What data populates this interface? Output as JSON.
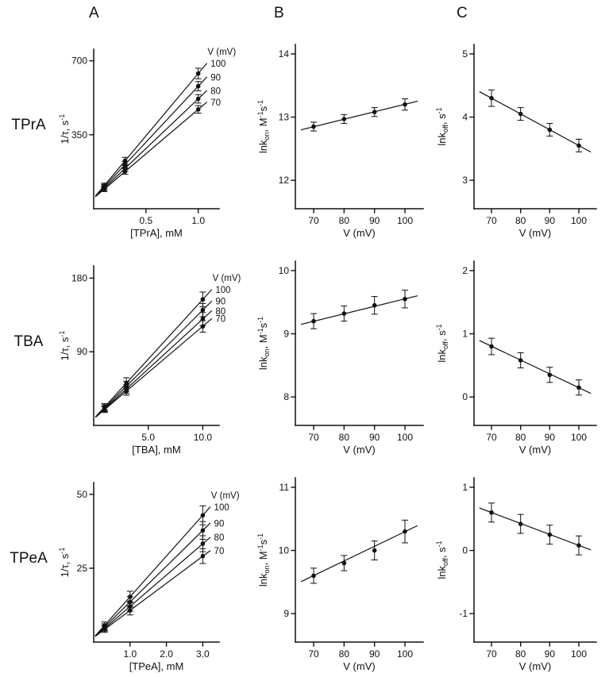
{
  "page": {
    "column_headers": [
      "A",
      "B",
      "C"
    ],
    "row_labels": [
      "TPrA",
      "TBA",
      "TPeA"
    ],
    "colors": {
      "ink": "#111111",
      "bg": "#ffffff"
    }
  },
  "chart_data": [
    {
      "id": "tpra-a",
      "type": "scatter",
      "xlabel": "[TPrA], mM",
      "ylabel_parts": [
        {
          "t": "1/τ, s"
        },
        {
          "t": "-1",
          "sup": true
        }
      ],
      "xlim": [
        0,
        1.2
      ],
      "ylim": [
        0,
        755
      ],
      "xticks": [
        0.5,
        1.0
      ],
      "xtick_labels": [
        "0.5",
        "1.0"
      ],
      "yticks": [
        350,
        700
      ],
      "ytick_labels": [
        "350",
        "700"
      ],
      "series_header": "V (mV)",
      "series": [
        {
          "label": "100",
          "x": [
            0.1,
            0.3,
            1.0
          ],
          "y": [
            109,
            227,
            640
          ],
          "yerr": [
            12,
            16,
            25
          ],
          "line": {
            "x": [
              0.02,
              1.08
            ],
            "y": [
              61.8,
              687.2
            ]
          }
        },
        {
          "label": "90",
          "x": [
            0.1,
            0.3,
            1.0
          ],
          "y": [
            103,
            209,
            580
          ],
          "yerr": [
            12,
            15,
            22
          ],
          "line": {
            "x": [
              0.02,
              1.08
            ],
            "y": [
              60.6,
              622.4
            ]
          }
        },
        {
          "label": "80",
          "x": [
            0.1,
            0.3,
            1.0
          ],
          "y": [
            97,
            191,
            520
          ],
          "yerr": [
            11,
            14,
            20
          ],
          "line": {
            "x": [
              0.02,
              1.08
            ],
            "y": [
              59.4,
              557.6
            ]
          }
        },
        {
          "label": "70",
          "x": [
            0.1,
            0.3,
            1.0
          ],
          "y": [
            92,
            176,
            470
          ],
          "yerr": [
            11,
            13,
            18
          ],
          "line": {
            "x": [
              0.02,
              1.08
            ],
            "y": [
              58.4,
              503.6
            ]
          }
        }
      ]
    },
    {
      "id": "tpra-kon",
      "type": "scatter",
      "xlabel": "V (mV)",
      "ylabel_parts": [
        {
          "t": "lnk"
        },
        {
          "t": "on",
          "sub": true
        },
        {
          "t": ", M"
        },
        {
          "t": "-1",
          "sup": true
        },
        {
          "t": "s"
        },
        {
          "t": "-1",
          "sup": true
        }
      ],
      "xlim": [
        64,
        106
      ],
      "ylim": [
        11.55,
        14.15
      ],
      "xticks": [
        70,
        80,
        90,
        100
      ],
      "xtick_labels": [
        "70",
        "80",
        "90",
        "100"
      ],
      "yticks": [
        12,
        13,
        14
      ],
      "ytick_labels": [
        "12",
        "13",
        "14"
      ],
      "series": [
        {
          "label": "",
          "x": [
            70,
            80,
            90,
            100
          ],
          "y": [
            12.85,
            12.97,
            13.08,
            13.2
          ],
          "yerr": [
            0.07,
            0.07,
            0.07,
            0.09
          ],
          "line": {
            "x": [
              66,
              104
            ],
            "y": [
              12.8,
              13.25
            ]
          }
        }
      ]
    },
    {
      "id": "tpra-koff",
      "type": "scatter",
      "xlabel": "V (mV)",
      "ylabel_parts": [
        {
          "t": "lnk"
        },
        {
          "t": "off",
          "sub": true
        },
        {
          "t": ", s"
        },
        {
          "t": "-1",
          "sup": true
        }
      ],
      "xlim": [
        64,
        106
      ],
      "ylim": [
        2.55,
        5.15
      ],
      "xticks": [
        70,
        80,
        90,
        100
      ],
      "xtick_labels": [
        "70",
        "80",
        "90",
        "100"
      ],
      "yticks": [
        3,
        4,
        5
      ],
      "ytick_labels": [
        "3",
        "4",
        "5"
      ],
      "series": [
        {
          "label": "",
          "x": [
            70,
            80,
            90,
            100
          ],
          "y": [
            4.3,
            4.05,
            3.8,
            3.55
          ],
          "yerr": [
            0.13,
            0.1,
            0.1,
            0.1
          ],
          "line": {
            "x": [
              66,
              104
            ],
            "y": [
              4.4,
              3.45
            ]
          }
        }
      ]
    },
    {
      "id": "tba-a",
      "type": "scatter",
      "xlabel": "[TBA], mM",
      "ylabel_parts": [
        {
          "t": "1/τ, s"
        },
        {
          "t": "-1",
          "sup": true
        }
      ],
      "xlim": [
        0,
        11.5
      ],
      "ylim": [
        0,
        195
      ],
      "xticks": [
        5,
        10
      ],
      "xtick_labels": [
        "5.0",
        "10.0"
      ],
      "yticks": [
        90,
        180
      ],
      "ytick_labels": [
        "90",
        "180"
      ],
      "series_header": "V (mV)",
      "series": [
        {
          "label": "100",
          "x": [
            1,
            3,
            10
          ],
          "y": [
            22.6,
            51.8,
            154
          ],
          "yerr": [
            4,
            6.5,
            9
          ],
          "line": {
            "x": [
              0.2,
              10.8
            ],
            "y": [
              10.9,
              165.7
            ]
          }
        },
        {
          "label": "90",
          "x": [
            1,
            3,
            10
          ],
          "y": [
            21.3,
            47.9,
            141
          ],
          "yerr": [
            4,
            6,
            8
          ],
          "line": {
            "x": [
              0.2,
              10.8
            ],
            "y": [
              10.7,
              151.6
            ]
          }
        },
        {
          "label": "80",
          "x": [
            1,
            3,
            10
          ],
          "y": [
            20.2,
            44.6,
            130
          ],
          "yerr": [
            3.5,
            5.5,
            8
          ],
          "line": {
            "x": [
              0.2,
              10.8
            ],
            "y": [
              10.4,
              139.8
            ]
          }
        },
        {
          "label": "70",
          "x": [
            1,
            3,
            10
          ],
          "y": [
            19.3,
            41.9,
            121
          ],
          "yerr": [
            3.5,
            5,
            7
          ],
          "line": {
            "x": [
              0.2,
              10.8
            ],
            "y": [
              10.3,
              130.3
            ]
          }
        }
      ]
    },
    {
      "id": "tba-kon",
      "type": "scatter",
      "xlabel": "V (mV)",
      "ylabel_parts": [
        {
          "t": "lnk"
        },
        {
          "t": "on",
          "sub": true
        },
        {
          "t": ", M"
        },
        {
          "t": "-1",
          "sup": true
        },
        {
          "t": "s"
        },
        {
          "t": "-1",
          "sup": true
        }
      ],
      "xlim": [
        64,
        106
      ],
      "ylim": [
        7.55,
        10.15
      ],
      "xticks": [
        70,
        80,
        90,
        100
      ],
      "xtick_labels": [
        "70",
        "80",
        "90",
        "100"
      ],
      "yticks": [
        8,
        9,
        10
      ],
      "ytick_labels": [
        "8",
        "9",
        "10"
      ],
      "series": [
        {
          "label": "",
          "x": [
            70,
            80,
            90,
            100
          ],
          "y": [
            9.2,
            9.32,
            9.45,
            9.55
          ],
          "yerr": [
            0.12,
            0.12,
            0.14,
            0.14
          ],
          "line": {
            "x": [
              66,
              104
            ],
            "y": [
              9.15,
              9.6
            ]
          }
        }
      ]
    },
    {
      "id": "tba-koff",
      "type": "scatter",
      "xlabel": "V (mV)",
      "ylabel_parts": [
        {
          "t": "lnk"
        },
        {
          "t": "off",
          "sub": true
        },
        {
          "t": ", s"
        },
        {
          "t": "-1",
          "sup": true
        }
      ],
      "xlim": [
        64,
        106
      ],
      "ylim": [
        -0.45,
        2.15
      ],
      "xticks": [
        70,
        80,
        90,
        100
      ],
      "xtick_labels": [
        "70",
        "80",
        "90",
        "100"
      ],
      "yticks": [
        0,
        1,
        2
      ],
      "ytick_labels": [
        "0",
        "1",
        "2"
      ],
      "series": [
        {
          "label": "",
          "x": [
            70,
            80,
            90,
            100
          ],
          "y": [
            0.8,
            0.58,
            0.35,
            0.15
          ],
          "yerr": [
            0.13,
            0.12,
            0.12,
            0.12
          ],
          "line": {
            "x": [
              66,
              104
            ],
            "y": [
              0.89,
              0.06
            ]
          }
        }
      ]
    },
    {
      "id": "tpea-a",
      "type": "scatter",
      "xlabel": "[TPeA], mM",
      "ylabel_parts": [
        {
          "t": "1/τ, s"
        },
        {
          "t": "-1",
          "sup": true
        }
      ],
      "xlim": [
        0,
        3.45
      ],
      "ylim": [
        0,
        54
      ],
      "xticks": [
        1,
        2,
        3
      ],
      "xtick_labels": [
        "1.0",
        "2.0",
        "3.0"
      ],
      "yticks": [
        25,
        50
      ],
      "ytick_labels": [
        "25",
        "50"
      ],
      "series_header": "V (mV)",
      "series": [
        {
          "label": "100",
          "x": [
            0.3,
            1.0,
            3.0
          ],
          "y": [
            5.6,
            15.3,
            42.9
          ],
          "yerr": [
            1.2,
            1.9,
            3.2
          ],
          "line": {
            "x": [
              0.05,
              3.2
            ],
            "y": [
              2.2,
              45.7
            ]
          }
        },
        {
          "label": "90",
          "x": [
            0.3,
            1.0,
            3.0
          ],
          "y": [
            5.1,
            13.6,
            37.8
          ],
          "yerr": [
            1.1,
            1.8,
            3.0
          ],
          "line": {
            "x": [
              0.05,
              3.2
            ],
            "y": [
              2.1,
              40.2
            ]
          }
        },
        {
          "label": "80",
          "x": [
            0.3,
            1.0,
            3.0
          ],
          "y": [
            4.7,
            12.1,
            33.3
          ],
          "yerr": [
            1.0,
            1.6,
            2.7
          ],
          "line": {
            "x": [
              0.05,
              3.2
            ],
            "y": [
              2.0,
              35.4
            ]
          }
        },
        {
          "label": "70",
          "x": [
            0.3,
            1.0,
            3.0
          ],
          "y": [
            4.3,
            10.7,
            29.1
          ],
          "yerr": [
            1.0,
            1.5,
            2.5
          ],
          "line": {
            "x": [
              0.05,
              3.2
            ],
            "y": [
              2.0,
              30.9
            ]
          }
        }
      ]
    },
    {
      "id": "tpea-kon",
      "type": "scatter",
      "xlabel": "V (mV)",
      "ylabel_parts": [
        {
          "t": "lnk"
        },
        {
          "t": "on",
          "sub": true
        },
        {
          "t": ", M"
        },
        {
          "t": "-1",
          "sup": true
        },
        {
          "t": "s"
        },
        {
          "t": "-1",
          "sup": true
        }
      ],
      "xlim": [
        64,
        106
      ],
      "ylim": [
        8.55,
        11.15
      ],
      "xticks": [
        70,
        80,
        90,
        100
      ],
      "xtick_labels": [
        "70",
        "80",
        "90",
        "100"
      ],
      "yticks": [
        9,
        10,
        11
      ],
      "ytick_labels": [
        "9",
        "10",
        "11"
      ],
      "series": [
        {
          "label": "",
          "x": [
            70,
            80,
            90,
            100
          ],
          "y": [
            9.6,
            9.8,
            10.0,
            10.3
          ],
          "yerr": [
            0.12,
            0.12,
            0.15,
            0.18
          ],
          "line": {
            "x": [
              66,
              104
            ],
            "y": [
              9.51,
              10.39
            ]
          }
        }
      ]
    },
    {
      "id": "tpea-koff",
      "type": "scatter",
      "xlabel": "V (mV)",
      "ylabel_parts": [
        {
          "t": "lnk"
        },
        {
          "t": "off",
          "sub": true
        },
        {
          "t": ", s"
        },
        {
          "t": "-1",
          "sup": true
        }
      ],
      "xlim": [
        64,
        106
      ],
      "ylim": [
        -1.45,
        1.15
      ],
      "xticks": [
        70,
        80,
        90,
        100
      ],
      "xtick_labels": [
        "70",
        "80",
        "90",
        "100"
      ],
      "yticks": [
        -1,
        0,
        1
      ],
      "ytick_labels": [
        "-1",
        "0",
        "1"
      ],
      "series": [
        {
          "label": "",
          "x": [
            70,
            80,
            90,
            100
          ],
          "y": [
            0.6,
            0.42,
            0.25,
            0.08
          ],
          "yerr": [
            0.15,
            0.15,
            0.15,
            0.15
          ],
          "line": {
            "x": [
              66,
              104
            ],
            "y": [
              0.67,
              0.01
            ]
          }
        }
      ]
    }
  ]
}
